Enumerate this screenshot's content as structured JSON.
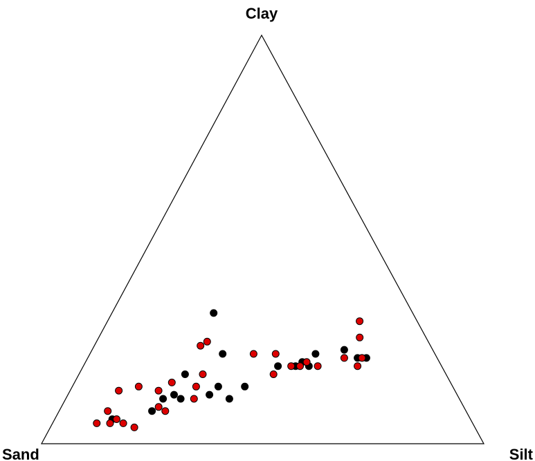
{
  "chart_data": {
    "type": "scatter",
    "subtype": "ternary",
    "title": "",
    "vertices": {
      "top": "Clay",
      "left": "Sand",
      "right": "Silt"
    },
    "series": [
      {
        "color": "#000000",
        "points": [
          {
            "sand": 0.81,
            "silt": 0.13,
            "clay": 0.06
          },
          {
            "sand": 0.71,
            "silt": 0.21,
            "clay": 0.08
          },
          {
            "sand": 0.67,
            "silt": 0.22,
            "clay": 0.11
          },
          {
            "sand": 0.64,
            "silt": 0.24,
            "clay": 0.12
          },
          {
            "sand": 0.63,
            "silt": 0.26,
            "clay": 0.11
          },
          {
            "sand": 0.59,
            "silt": 0.24,
            "clay": 0.17
          },
          {
            "sand": 0.56,
            "silt": 0.32,
            "clay": 0.12
          },
          {
            "sand": 0.53,
            "silt": 0.33,
            "clay": 0.14
          },
          {
            "sand": 0.52,
            "silt": 0.37,
            "clay": 0.11
          },
          {
            "sand": 0.48,
            "silt": 0.3,
            "clay": 0.22
          },
          {
            "sand": 0.45,
            "silt": 0.23,
            "clay": 0.32
          },
          {
            "sand": 0.47,
            "silt": 0.39,
            "clay": 0.14
          },
          {
            "sand": 0.37,
            "silt": 0.44,
            "clay": 0.19
          },
          {
            "sand": 0.33,
            "silt": 0.48,
            "clay": 0.19
          },
          {
            "sand": 0.31,
            "silt": 0.49,
            "clay": 0.2
          },
          {
            "sand": 0.3,
            "silt": 0.51,
            "clay": 0.19
          },
          {
            "sand": 0.27,
            "silt": 0.51,
            "clay": 0.22
          },
          {
            "sand": 0.2,
            "silt": 0.57,
            "clay": 0.23
          },
          {
            "sand": 0.18,
            "silt": 0.61,
            "clay": 0.21
          },
          {
            "sand": 0.16,
            "silt": 0.63,
            "clay": 0.21
          }
        ]
      },
      {
        "color": "#dd0000",
        "points": [
          {
            "sand": 0.85,
            "silt": 0.1,
            "clay": 0.05
          },
          {
            "sand": 0.82,
            "silt": 0.13,
            "clay": 0.05
          },
          {
            "sand": 0.81,
            "silt": 0.11,
            "clay": 0.08
          },
          {
            "sand": 0.8,
            "silt": 0.14,
            "clay": 0.06
          },
          {
            "sand": 0.79,
            "silt": 0.16,
            "clay": 0.05
          },
          {
            "sand": 0.77,
            "silt": 0.19,
            "clay": 0.04
          },
          {
            "sand": 0.76,
            "silt": 0.11,
            "clay": 0.13
          },
          {
            "sand": 0.71,
            "silt": 0.15,
            "clay": 0.14
          },
          {
            "sand": 0.69,
            "silt": 0.22,
            "clay": 0.09
          },
          {
            "sand": 0.68,
            "silt": 0.24,
            "clay": 0.08
          },
          {
            "sand": 0.67,
            "silt": 0.2,
            "clay": 0.13
          },
          {
            "sand": 0.63,
            "silt": 0.22,
            "clay": 0.15
          },
          {
            "sand": 0.6,
            "silt": 0.29,
            "clay": 0.11
          },
          {
            "sand": 0.58,
            "silt": 0.28,
            "clay": 0.14
          },
          {
            "sand": 0.55,
            "silt": 0.28,
            "clay": 0.17
          },
          {
            "sand": 0.52,
            "silt": 0.24,
            "clay": 0.24
          },
          {
            "sand": 0.5,
            "silt": 0.25,
            "clay": 0.25
          },
          {
            "sand": 0.41,
            "silt": 0.37,
            "clay": 0.22
          },
          {
            "sand": 0.39,
            "silt": 0.44,
            "clay": 0.17
          },
          {
            "sand": 0.36,
            "silt": 0.42,
            "clay": 0.22
          },
          {
            "sand": 0.34,
            "silt": 0.47,
            "clay": 0.19
          },
          {
            "sand": 0.32,
            "silt": 0.49,
            "clay": 0.19
          },
          {
            "sand": 0.3,
            "silt": 0.5,
            "clay": 0.2
          },
          {
            "sand": 0.28,
            "silt": 0.53,
            "clay": 0.19
          },
          {
            "sand": 0.21,
            "silt": 0.58,
            "clay": 0.21
          },
          {
            "sand": 0.19,
            "silt": 0.62,
            "clay": 0.19
          },
          {
            "sand": 0.17,
            "silt": 0.62,
            "clay": 0.21
          },
          {
            "sand": 0.15,
            "silt": 0.59,
            "clay": 0.26
          },
          {
            "sand": 0.13,
            "silt": 0.57,
            "clay": 0.3
          }
        ]
      }
    ]
  }
}
